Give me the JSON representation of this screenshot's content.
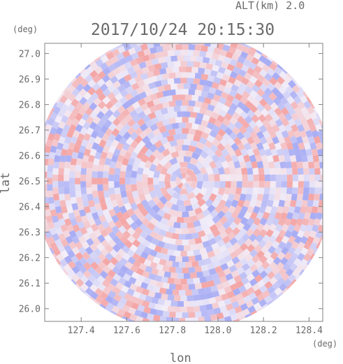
{
  "chart_data": {
    "type": "heatmap",
    "title": "2017/10/24 20:15:30",
    "altitude_label": "ALT(km) 2.0",
    "xlabel": "lon",
    "ylabel": "lat",
    "x_unit": "(deg)",
    "y_unit": "(deg)",
    "xlim": [
      127.24,
      128.46
    ],
    "ylim": [
      25.95,
      27.04
    ],
    "x_ticks": [
      "127.4",
      "127.6",
      "127.8",
      "128.0",
      "128.2",
      "128.4"
    ],
    "x_tick_values": [
      127.4,
      127.6,
      127.8,
      128.0,
      128.2,
      128.4
    ],
    "y_ticks": [
      "26.0",
      "26.1",
      "26.2",
      "26.3",
      "26.4",
      "26.5",
      "26.6",
      "26.7",
      "26.8",
      "26.9",
      "27.0"
    ],
    "y_tick_values": [
      26.0,
      26.1,
      26.2,
      26.3,
      26.4,
      26.5,
      26.6,
      26.7,
      26.8,
      26.9,
      27.0
    ],
    "radar_center": {
      "lon": 127.85,
      "lat": 26.5
    },
    "colors": {
      "positive": "#f4a7a7",
      "negative": "#a9aef4",
      "neutral": "#f3eef8",
      "axis": "#808080",
      "text": "#6a6a6a"
    }
  }
}
